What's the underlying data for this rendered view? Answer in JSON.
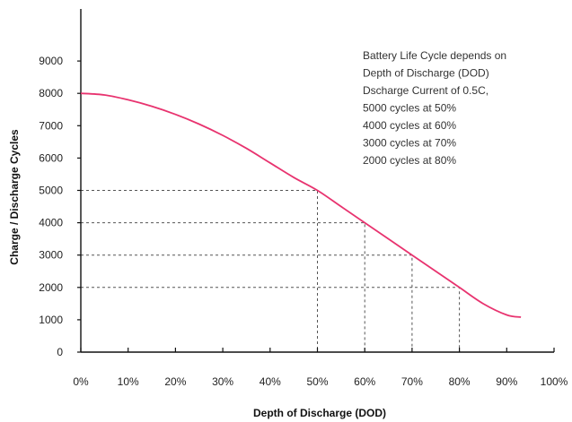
{
  "chart_data": {
    "type": "line",
    "xlabel": "Depth of Discharge (DOD)",
    "ylabel": "Charge / Discharge Cycles",
    "x_ticks": [
      "0%",
      "10%",
      "20%",
      "30%",
      "40%",
      "50%",
      "60%",
      "70%",
      "80%",
      "90%",
      "100%"
    ],
    "x_tick_values": [
      0,
      10,
      20,
      30,
      40,
      50,
      60,
      70,
      80,
      90,
      100
    ],
    "y_ticks": [
      "0",
      "1000",
      "2000",
      "3000",
      "4000",
      "5000",
      "6000",
      "7000",
      "8000",
      "9000"
    ],
    "y_tick_values": [
      0,
      1000,
      2000,
      3000,
      4000,
      5000,
      6000,
      7000,
      8000,
      9000
    ],
    "xlim": [
      0,
      100
    ],
    "ylim": [
      0,
      10000
    ],
    "grid": false,
    "series": [
      {
        "color": "#e8336f",
        "x": [
          0,
          5,
          10,
          15,
          20,
          25,
          30,
          35,
          40,
          45,
          50,
          55,
          60,
          65,
          70,
          75,
          80,
          85,
          90,
          93
        ],
        "y": [
          8000,
          7950,
          7800,
          7600,
          7350,
          7050,
          6700,
          6300,
          5850,
          5400,
          5000,
          4500,
          4000,
          3500,
          3000,
          2500,
          2000,
          1500,
          1150,
          1080
        ]
      }
    ],
    "reference_points": [
      {
        "x": 50,
        "y": 5000
      },
      {
        "x": 60,
        "y": 4000
      },
      {
        "x": 70,
        "y": 3000
      },
      {
        "x": 80,
        "y": 2000
      }
    ],
    "annotations": [
      "Battery Life Cycle depends on",
      "Depth of Discharge (DOD)",
      "Dscharge Current of 0.5C,",
      "5000 cycles at 50%",
      "4000 cycles at 60%",
      "3000 cycles at 70%",
      "2000 cycles at 80%"
    ]
  }
}
